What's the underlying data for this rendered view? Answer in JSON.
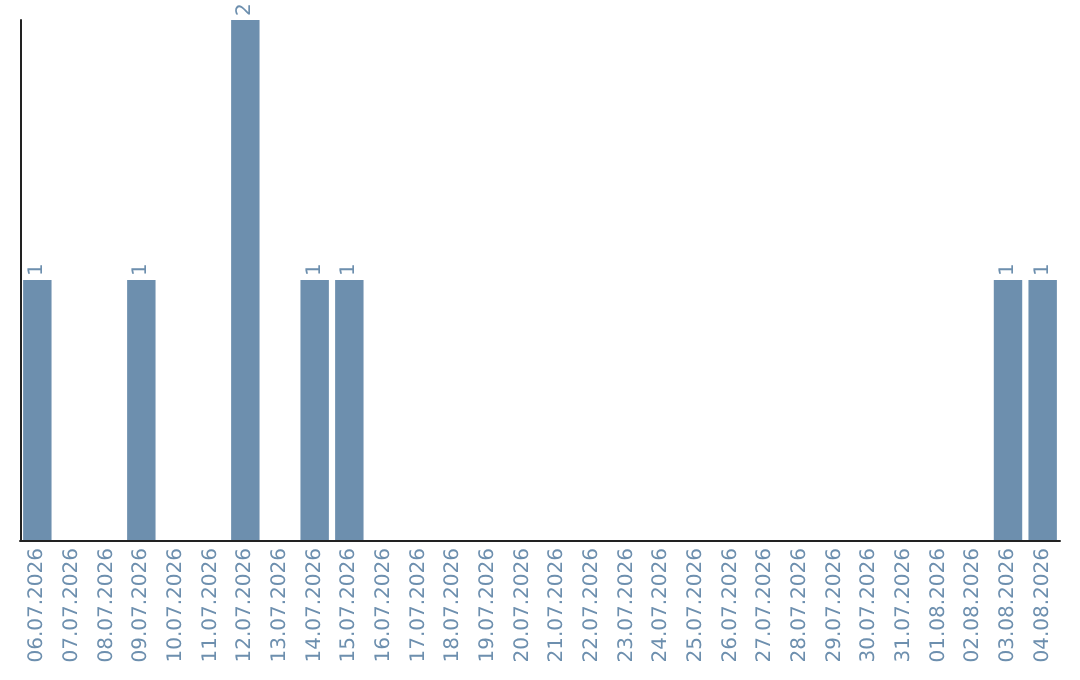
{
  "chart_data": {
    "type": "bar",
    "categories": [
      "06.07.2026",
      "07.07.2026",
      "08.07.2026",
      "09.07.2026",
      "10.07.2026",
      "11.07.2026",
      "12.07.2026",
      "13.07.2026",
      "14.07.2026",
      "15.07.2026",
      "16.07.2026",
      "17.07.2026",
      "18.07.2026",
      "19.07.2026",
      "20.07.2026",
      "21.07.2026",
      "22.07.2026",
      "23.07.2026",
      "24.07.2026",
      "25.07.2026",
      "26.07.2026",
      "27.07.2026",
      "28.07.2026",
      "29.07.2026",
      "30.07.2026",
      "31.07.2026",
      "01.08.2026",
      "02.08.2026",
      "03.08.2026",
      "04.08.2026"
    ],
    "values": [
      1,
      0,
      0,
      1,
      0,
      0,
      2,
      0,
      1,
      1,
      0,
      0,
      0,
      0,
      0,
      0,
      0,
      0,
      0,
      0,
      0,
      0,
      0,
      0,
      0,
      0,
      0,
      0,
      1,
      1
    ],
    "value_labels": [
      "1",
      null,
      null,
      "1",
      null,
      null,
      "2",
      null,
      "1",
      "1",
      null,
      null,
      null,
      null,
      null,
      null,
      null,
      null,
      null,
      null,
      null,
      null,
      null,
      null,
      null,
      null,
      null,
      null,
      "1",
      "1"
    ],
    "color": "#6d8fae",
    "tick_labels": "x"
  }
}
